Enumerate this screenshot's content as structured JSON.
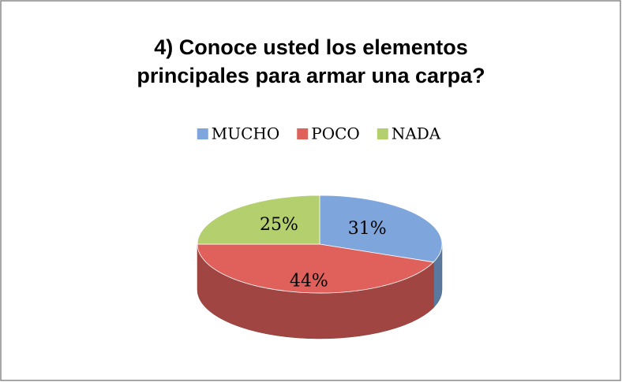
{
  "chart_data": {
    "type": "pie3d",
    "title": "4) Conoce usted los elementos principales para armar una carpa?",
    "categories": [
      "MUCHO",
      "POCO",
      "NADA"
    ],
    "values": [
      31,
      44,
      25
    ],
    "value_labels": [
      "31%",
      "44%",
      "25%"
    ],
    "colors": [
      "#7fa6dc",
      "#e0605c",
      "#b4d06e"
    ],
    "legend": "top"
  }
}
